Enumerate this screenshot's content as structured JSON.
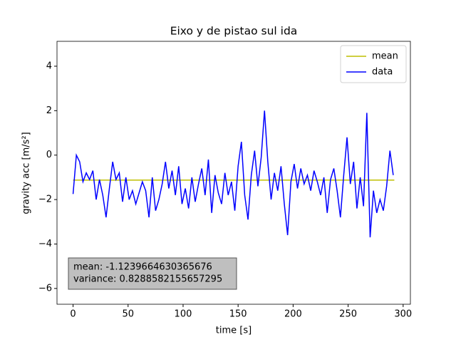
{
  "chart_data": {
    "type": "line",
    "title": "Eixo y de pistao sul ida",
    "xlabel": "time [s]",
    "ylabel": "gravity acc [m/s²]",
    "xlim": [
      -14.6,
      306.6
    ],
    "ylim": [
      -6.71,
      5.12
    ],
    "xticks": [
      0,
      50,
      100,
      150,
      200,
      250,
      300
    ],
    "yticks": [
      {
        "value": -6,
        "label": "−6"
      },
      {
        "value": -4,
        "label": "−4"
      },
      {
        "value": -2,
        "label": "−2"
      },
      0,
      2,
      4
    ],
    "legend": "upper right",
    "series": [
      {
        "name": "mean",
        "color": "#bfbf00",
        "x": [
          0,
          292
        ],
        "values": [
          -1.1239664630365676,
          -1.1239664630365676
        ]
      },
      {
        "name": "data",
        "color": "#0000ff",
        "x": [
          0,
          3,
          6,
          9,
          12,
          15,
          18,
          21,
          24,
          27,
          30,
          33,
          36,
          39,
          42,
          45,
          48,
          51,
          54,
          57,
          60,
          63,
          66,
          69,
          72,
          75,
          78,
          81,
          84,
          87,
          90,
          93,
          96,
          99,
          102,
          105,
          108,
          111,
          114,
          117,
          120,
          123,
          126,
          129,
          132,
          135,
          138,
          141,
          144,
          147,
          150,
          153,
          156,
          159,
          162,
          165,
          168,
          171,
          174,
          177,
          180,
          183,
          186,
          189,
          192,
          195,
          198,
          201,
          204,
          207,
          210,
          213,
          216,
          219,
          222,
          225,
          228,
          231,
          234,
          237,
          240,
          243,
          246,
          249,
          252,
          255,
          258,
          261,
          264,
          267,
          270,
          273,
          276,
          279,
          282,
          285,
          288,
          291
        ],
        "values": [
          -1.75,
          0,
          -0.3,
          -1.2,
          -0.8,
          -1.1,
          -0.7,
          -2.0,
          -1.1,
          -1.8,
          -2.8,
          -1.5,
          -0.3,
          -1.1,
          -0.8,
          -2.1,
          -1.0,
          -2.0,
          -1.6,
          -2.2,
          -1.7,
          -1.2,
          -1.6,
          -2.8,
          -1.0,
          -2.5,
          -2.0,
          -1.3,
          -0.3,
          -1.5,
          -0.7,
          -1.8,
          -0.5,
          -2.2,
          -1.5,
          -2.4,
          -1.0,
          -2.1,
          -1.3,
          -0.6,
          -1.8,
          -0.2,
          -2.6,
          -0.9,
          -1.7,
          -2.2,
          -0.8,
          -1.8,
          -1.2,
          -2.5,
          -0.5,
          0.6,
          -1.8,
          -2.9,
          -0.9,
          0.2,
          -1.4,
          -0.1,
          2.0,
          -0.3,
          -2.0,
          -0.8,
          -1.6,
          -0.5,
          -2.2,
          -3.6,
          -1.2,
          -0.4,
          -1.5,
          -0.6,
          -1.3,
          -0.9,
          -1.6,
          -0.7,
          -1.2,
          -1.8,
          -1.0,
          -2.6,
          -1.1,
          -0.6,
          -1.6,
          -2.8,
          -0.9,
          0.8,
          -1.3,
          -0.3,
          -2.4,
          -1.0,
          -2.3,
          1.9,
          -3.7,
          -1.6,
          -2.6,
          -2.0,
          -2.5,
          -1.4,
          0.2,
          -0.9
        ]
      }
    ],
    "annotations": [
      "mean: -1.1239664630365676",
      "variance: 0.8288582155657295"
    ]
  }
}
